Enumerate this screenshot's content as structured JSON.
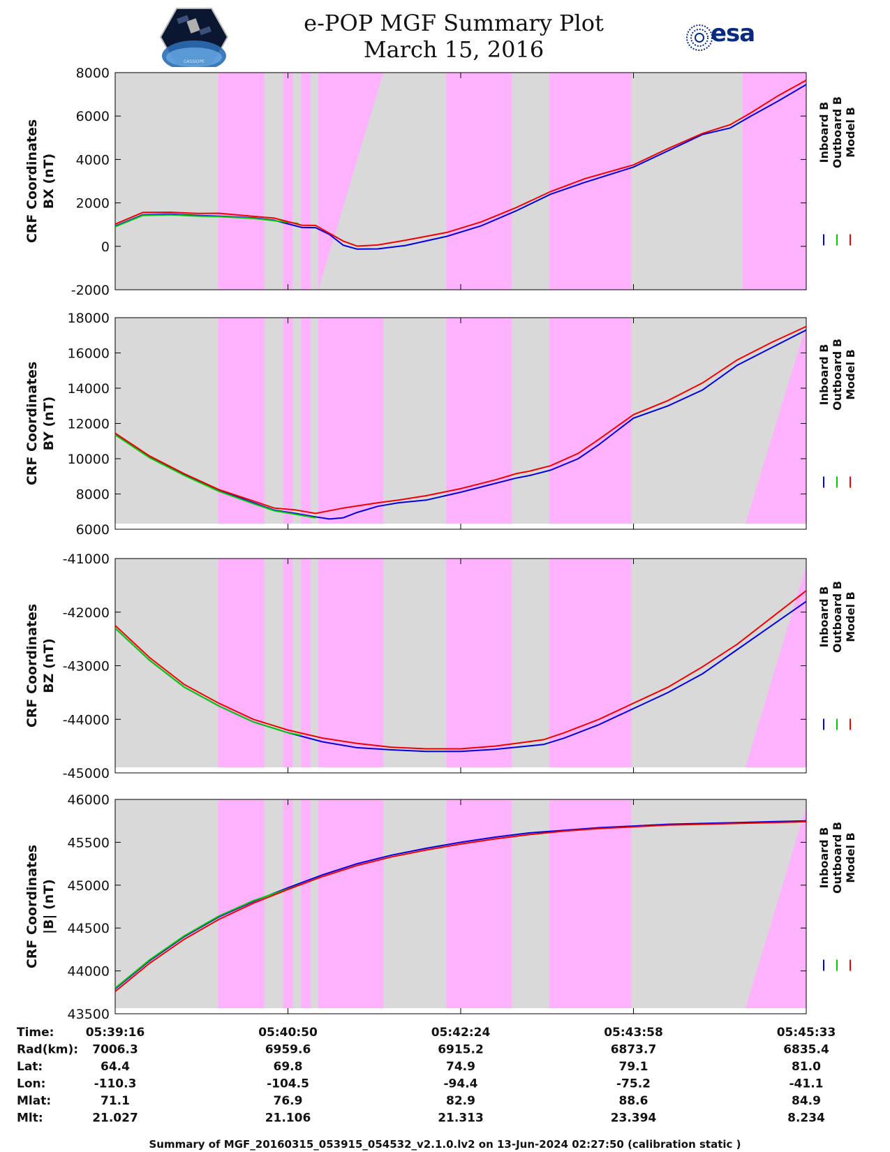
{
  "header": {
    "title": "e-POP MGF Summary Plot",
    "date": "March 15, 2016",
    "logo_left_text": "CASSIOPE",
    "logo_right_text": "esa"
  },
  "colors": {
    "background_gray": "#d9d9d9",
    "highlight_pink": "#ffb3ff",
    "inboard": "#0000dd",
    "outboard": "#00cc00",
    "model": "#ee0000"
  },
  "legend": {
    "entries": [
      "Inboard B",
      "Outboard B",
      "Model B"
    ]
  },
  "chart_data": [
    {
      "type": "line",
      "ylabel_line1": "CRF Coordinates",
      "ylabel_line2": "BX (nT)",
      "ylim": [
        -2000,
        8000
      ],
      "yticks": [
        -2000,
        0,
        2000,
        4000,
        6000,
        8000
      ],
      "series": [
        {
          "name": "Inboard B",
          "color": "#0000dd",
          "points": [
            [
              0,
              930
            ],
            [
              0.04,
              1450
            ],
            [
              0.08,
              1480
            ],
            [
              0.12,
              1420
            ],
            [
              0.15,
              1390
            ],
            [
              0.2,
              1310
            ],
            [
              0.23,
              1200
            ],
            [
              0.27,
              870
            ],
            [
              0.29,
              860
            ],
            [
              0.31,
              550
            ],
            [
              0.33,
              50
            ],
            [
              0.35,
              -130
            ],
            [
              0.38,
              -120
            ],
            [
              0.42,
              40
            ],
            [
              0.48,
              460
            ],
            [
              0.53,
              950
            ],
            [
              0.58,
              1630
            ],
            [
              0.63,
              2400
            ],
            [
              0.68,
              2950
            ],
            [
              0.75,
              3650
            ],
            [
              0.8,
              4400
            ],
            [
              0.85,
              5150
            ],
            [
              0.89,
              5450
            ],
            [
              0.92,
              6000
            ],
            [
              0.96,
              6700
            ],
            [
              1.0,
              7450
            ]
          ]
        },
        {
          "name": "Outboard B",
          "color": "#00cc00",
          "points": [
            [
              0,
              900
            ],
            [
              0.04,
              1420
            ],
            [
              0.08,
              1450
            ],
            [
              0.12,
              1390
            ],
            [
              0.15,
              1370
            ],
            [
              0.2,
              1290
            ],
            [
              0.23,
              1180
            ],
            [
              0.265,
              1050
            ]
          ]
        },
        {
          "name": "Model B",
          "color": "#ee0000",
          "points": [
            [
              0,
              1020
            ],
            [
              0.04,
              1560
            ],
            [
              0.08,
              1570
            ],
            [
              0.12,
              1510
            ],
            [
              0.15,
              1520
            ],
            [
              0.2,
              1380
            ],
            [
              0.23,
              1300
            ],
            [
              0.27,
              970
            ],
            [
              0.29,
              960
            ],
            [
              0.31,
              600
            ],
            [
              0.33,
              240
            ],
            [
              0.35,
              10
            ],
            [
              0.38,
              60
            ],
            [
              0.42,
              280
            ],
            [
              0.48,
              640
            ],
            [
              0.53,
              1130
            ],
            [
              0.58,
              1780
            ],
            [
              0.63,
              2520
            ],
            [
              0.68,
              3120
            ],
            [
              0.75,
              3750
            ],
            [
              0.8,
              4500
            ],
            [
              0.85,
              5200
            ],
            [
              0.89,
              5600
            ],
            [
              0.92,
              6150
            ],
            [
              0.96,
              6950
            ],
            [
              1.0,
              7650
            ]
          ]
        }
      ]
    },
    {
      "type": "line",
      "ylabel_line1": "CRF Coordinates",
      "ylabel_line2": "BY (nT)",
      "ylim": [
        6000,
        18000
      ],
      "yticks": [
        6000,
        8000,
        10000,
        12000,
        14000,
        16000,
        18000
      ],
      "series": [
        {
          "name": "Inboard B",
          "color": "#0000dd",
          "points": [
            [
              0,
              11400
            ],
            [
              0.05,
              10100
            ],
            [
              0.1,
              9100
            ],
            [
              0.15,
              8200
            ],
            [
              0.2,
              7500
            ],
            [
              0.23,
              7080
            ],
            [
              0.26,
              6900
            ],
            [
              0.29,
              6700
            ],
            [
              0.31,
              6580
            ],
            [
              0.33,
              6650
            ],
            [
              0.35,
              6950
            ],
            [
              0.38,
              7300
            ],
            [
              0.41,
              7500
            ],
            [
              0.45,
              7650
            ],
            [
              0.5,
              8100
            ],
            [
              0.55,
              8600
            ],
            [
              0.58,
              8900
            ],
            [
              0.6,
              9050
            ],
            [
              0.63,
              9350
            ],
            [
              0.67,
              10000
            ],
            [
              0.7,
              10800
            ],
            [
              0.75,
              12300
            ],
            [
              0.8,
              13000
            ],
            [
              0.85,
              13900
            ],
            [
              0.9,
              15300
            ],
            [
              0.95,
              16300
            ],
            [
              1.0,
              17300
            ]
          ]
        },
        {
          "name": "Outboard B",
          "color": "#00cc00",
          "points": [
            [
              0,
              11350
            ],
            [
              0.05,
              10050
            ],
            [
              0.1,
              9050
            ],
            [
              0.15,
              8150
            ],
            [
              0.2,
              7450
            ],
            [
              0.23,
              7050
            ],
            [
              0.26,
              6850
            ],
            [
              0.29,
              6650
            ]
          ]
        },
        {
          "name": "Model B",
          "color": "#ee0000",
          "points": [
            [
              0,
              11450
            ],
            [
              0.05,
              10150
            ],
            [
              0.1,
              9150
            ],
            [
              0.15,
              8250
            ],
            [
              0.2,
              7600
            ],
            [
              0.23,
              7200
            ],
            [
              0.26,
              7100
            ],
            [
              0.29,
              6900
            ],
            [
              0.33,
              7200
            ],
            [
              0.38,
              7500
            ],
            [
              0.41,
              7650
            ],
            [
              0.45,
              7900
            ],
            [
              0.5,
              8300
            ],
            [
              0.55,
              8800
            ],
            [
              0.58,
              9150
            ],
            [
              0.6,
              9300
            ],
            [
              0.63,
              9600
            ],
            [
              0.67,
              10300
            ],
            [
              0.7,
              11100
            ],
            [
              0.75,
              12500
            ],
            [
              0.8,
              13300
            ],
            [
              0.85,
              14300
            ],
            [
              0.9,
              15600
            ],
            [
              0.95,
              16600
            ],
            [
              1.0,
              17500
            ]
          ]
        }
      ]
    },
    {
      "type": "line",
      "ylabel_line1": "CRF Coordinates",
      "ylabel_line2": "BZ (nT)",
      "ylim": [
        -45000,
        -41000
      ],
      "yticks": [
        -45000,
        -44000,
        -43000,
        -42000,
        -41000
      ],
      "series": [
        {
          "name": "Inboard B",
          "color": "#0000dd",
          "points": [
            [
              0,
              -42300
            ],
            [
              0.05,
              -42900
            ],
            [
              0.1,
              -43400
            ],
            [
              0.15,
              -43750
            ],
            [
              0.2,
              -44050
            ],
            [
              0.25,
              -44250
            ],
            [
              0.3,
              -44420
            ],
            [
              0.35,
              -44530
            ],
            [
              0.4,
              -44570
            ],
            [
              0.45,
              -44600
            ],
            [
              0.5,
              -44600
            ],
            [
              0.55,
              -44560
            ],
            [
              0.58,
              -44520
            ],
            [
              0.62,
              -44470
            ],
            [
              0.65,
              -44350
            ],
            [
              0.7,
              -44100
            ],
            [
              0.75,
              -43800
            ],
            [
              0.8,
              -43500
            ],
            [
              0.85,
              -43150
            ],
            [
              0.9,
              -42700
            ],
            [
              0.95,
              -42250
            ],
            [
              1.0,
              -41800
            ]
          ]
        },
        {
          "name": "Outboard B",
          "color": "#00cc00",
          "points": [
            [
              0,
              -42300
            ],
            [
              0.05,
              -42900
            ],
            [
              0.1,
              -43400
            ],
            [
              0.15,
              -43750
            ],
            [
              0.2,
              -44050
            ],
            [
              0.25,
              -44250
            ],
            [
              0.27,
              -44300
            ]
          ]
        },
        {
          "name": "Model B",
          "color": "#ee0000",
          "points": [
            [
              0,
              -42250
            ],
            [
              0.05,
              -42850
            ],
            [
              0.1,
              -43350
            ],
            [
              0.15,
              -43700
            ],
            [
              0.2,
              -44000
            ],
            [
              0.25,
              -44200
            ],
            [
              0.3,
              -44350
            ],
            [
              0.35,
              -44450
            ],
            [
              0.4,
              -44520
            ],
            [
              0.45,
              -44550
            ],
            [
              0.5,
              -44550
            ],
            [
              0.55,
              -44500
            ],
            [
              0.58,
              -44450
            ],
            [
              0.62,
              -44380
            ],
            [
              0.65,
              -44250
            ],
            [
              0.7,
              -44000
            ],
            [
              0.75,
              -43700
            ],
            [
              0.8,
              -43400
            ],
            [
              0.85,
              -43020
            ],
            [
              0.9,
              -42600
            ],
            [
              0.95,
              -42100
            ],
            [
              1.0,
              -41600
            ]
          ]
        }
      ]
    },
    {
      "type": "line",
      "ylabel_line1": "CRF Coordinates",
      "ylabel_line2": "|B| (nT)",
      "ylim": [
        43500,
        46000
      ],
      "yticks": [
        43500,
        44000,
        44500,
        45000,
        45500,
        46000
      ],
      "series": [
        {
          "name": "Inboard B",
          "color": "#0000dd",
          "points": [
            [
              0,
              43790
            ],
            [
              0.05,
              44120
            ],
            [
              0.1,
              44400
            ],
            [
              0.15,
              44630
            ],
            [
              0.2,
              44810
            ],
            [
              0.25,
              44970
            ],
            [
              0.3,
              45120
            ],
            [
              0.35,
              45250
            ],
            [
              0.4,
              45350
            ],
            [
              0.45,
              45430
            ],
            [
              0.5,
              45500
            ],
            [
              0.55,
              45560
            ],
            [
              0.6,
              45610
            ],
            [
              0.65,
              45640
            ],
            [
              0.7,
              45670
            ],
            [
              0.75,
              45690
            ],
            [
              0.8,
              45710
            ],
            [
              0.85,
              45720
            ],
            [
              0.9,
              45730
            ],
            [
              0.95,
              45740
            ],
            [
              1.0,
              45750
            ]
          ]
        },
        {
          "name": "Outboard B",
          "color": "#00cc00",
          "points": [
            [
              0,
              43800
            ],
            [
              0.05,
              44130
            ],
            [
              0.1,
              44410
            ],
            [
              0.15,
              44640
            ],
            [
              0.2,
              44820
            ],
            [
              0.27,
              45010
            ]
          ]
        },
        {
          "name": "Model B",
          "color": "#ee0000",
          "points": [
            [
              0,
              43760
            ],
            [
              0.05,
              44090
            ],
            [
              0.1,
              44370
            ],
            [
              0.15,
              44600
            ],
            [
              0.2,
              44790
            ],
            [
              0.25,
              44950
            ],
            [
              0.3,
              45100
            ],
            [
              0.35,
              45230
            ],
            [
              0.4,
              45330
            ],
            [
              0.45,
              45410
            ],
            [
              0.5,
              45480
            ],
            [
              0.55,
              45540
            ],
            [
              0.6,
              45590
            ],
            [
              0.65,
              45630
            ],
            [
              0.7,
              45660
            ],
            [
              0.75,
              45680
            ],
            [
              0.8,
              45700
            ],
            [
              0.85,
              45710
            ],
            [
              0.9,
              45720
            ],
            [
              0.95,
              45730
            ],
            [
              1.0,
              45740
            ]
          ]
        }
      ]
    }
  ],
  "x_axis": {
    "tick_fractions": [
      0,
      0.25,
      0.5,
      0.75,
      1.0
    ]
  },
  "info_table": {
    "rows": [
      {
        "label": "Time:",
        "values": [
          "05:39:16",
          "05:40:50",
          "05:42:24",
          "05:43:58",
          "05:45:33"
        ]
      },
      {
        "label": "Rad(km):",
        "values": [
          "7006.3",
          "6959.6",
          "6915.2",
          "6873.7",
          "6835.4"
        ]
      },
      {
        "label": "Lat:",
        "values": [
          "64.4",
          "69.8",
          "74.9",
          "79.1",
          "81.0"
        ]
      },
      {
        "label": "Lon:",
        "values": [
          "-110.3",
          "-104.5",
          "-94.4",
          "-75.2",
          "-41.1"
        ]
      },
      {
        "label": "Mlat:",
        "values": [
          "71.1",
          "76.9",
          "82.9",
          "88.6",
          "84.9"
        ]
      },
      {
        "label": "Mlt:",
        "values": [
          "21.027",
          "21.106",
          "21.313",
          "23.394",
          "8.234"
        ]
      }
    ]
  },
  "footer": {
    "text": "Summary of MGF_20160315_053915_054532_v2.1.0.lv2 on 13-Jun-2024 02:27:50 (calibration static )"
  }
}
